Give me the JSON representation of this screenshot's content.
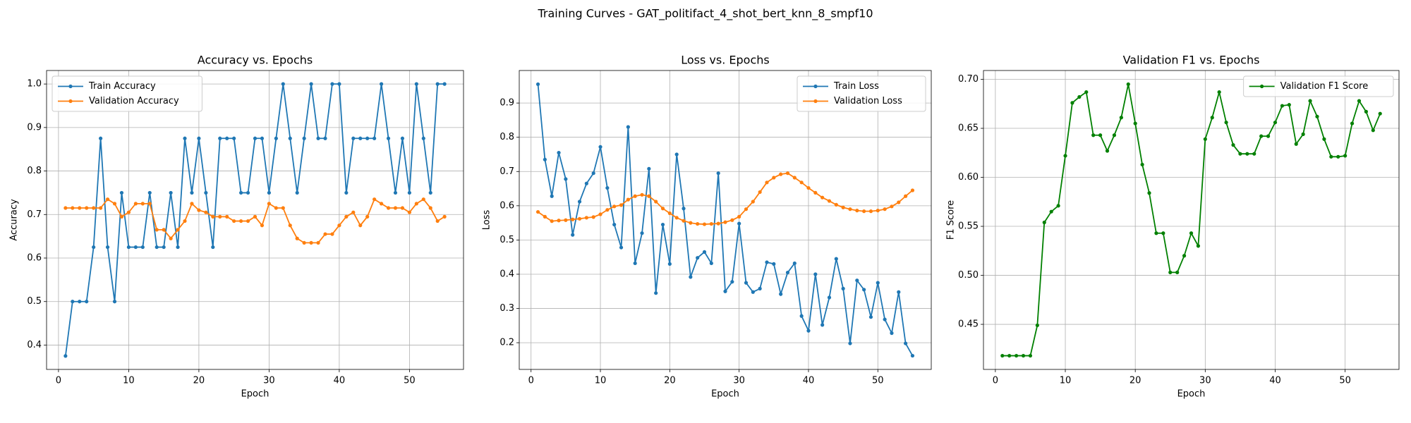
{
  "title": "Training Curves - GAT_politifact_4_shot_bert_knn_8_smpf10",
  "chart_data": [
    {
      "type": "line",
      "title": "Accuracy vs. Epochs",
      "xlabel": "Epoch",
      "ylabel": "Accuracy",
      "x": [
        1,
        2,
        3,
        4,
        5,
        6,
        7,
        8,
        9,
        10,
        11,
        12,
        13,
        14,
        15,
        16,
        17,
        18,
        19,
        20,
        21,
        22,
        23,
        24,
        25,
        26,
        27,
        28,
        29,
        30,
        31,
        32,
        33,
        34,
        35,
        36,
        37,
        38,
        39,
        40,
        41,
        42,
        43,
        44,
        45,
        46,
        47,
        48,
        49,
        50,
        51,
        52,
        53,
        54,
        55
      ],
      "series": [
        {
          "name": "Train Accuracy",
          "color": "#1f77b4",
          "values": [
            0.375,
            0.5,
            0.5,
            0.5,
            0.625,
            0.875,
            0.625,
            0.5,
            0.75,
            0.625,
            0.625,
            0.625,
            0.75,
            0.625,
            0.625,
            0.75,
            0.625,
            0.875,
            0.75,
            0.875,
            0.75,
            0.625,
            0.875,
            0.875,
            0.875,
            0.75,
            0.75,
            0.875,
            0.875,
            0.75,
            0.875,
            1.0,
            0.875,
            0.75,
            0.875,
            1.0,
            0.875,
            0.875,
            1.0,
            1.0,
            0.75,
            0.875,
            0.875,
            0.875,
            0.875,
            1.0,
            0.875,
            0.75,
            0.875,
            0.75,
            1.0,
            0.875,
            0.75,
            1.0,
            1.0
          ]
        },
        {
          "name": "Validation Accuracy",
          "color": "#ff7f0e",
          "values": [
            0.715,
            0.715,
            0.715,
            0.715,
            0.715,
            0.715,
            0.735,
            0.725,
            0.695,
            0.705,
            0.725,
            0.725,
            0.725,
            0.665,
            0.665,
            0.645,
            0.665,
            0.685,
            0.725,
            0.71,
            0.705,
            0.695,
            0.695,
            0.695,
            0.685,
            0.685,
            0.685,
            0.695,
            0.675,
            0.725,
            0.715,
            0.715,
            0.675,
            0.645,
            0.635,
            0.635,
            0.635,
            0.655,
            0.655,
            0.675,
            0.695,
            0.705,
            0.675,
            0.695,
            0.735,
            0.725,
            0.715,
            0.715,
            0.715,
            0.705,
            0.725,
            0.735,
            0.715,
            0.685,
            0.695
          ]
        }
      ],
      "xlim": [
        -1.7,
        57.7
      ],
      "xticks": [
        0,
        10,
        20,
        30,
        40,
        50
      ],
      "ylim": [
        0.344,
        1.031
      ],
      "yticks": [
        0.4,
        0.5,
        0.6,
        0.7,
        0.8,
        0.9,
        {
          "value": 1.0,
          "label": "1.0"
        }
      ],
      "grid": true,
      "legend": "upper-left"
    },
    {
      "type": "line",
      "title": "Loss vs. Epochs",
      "xlabel": "Epoch",
      "ylabel": "Loss",
      "x": [
        1,
        2,
        3,
        4,
        5,
        6,
        7,
        8,
        9,
        10,
        11,
        12,
        13,
        14,
        15,
        16,
        17,
        18,
        19,
        20,
        21,
        22,
        23,
        24,
        25,
        26,
        27,
        28,
        29,
        30,
        31,
        32,
        33,
        34,
        35,
        36,
        37,
        38,
        39,
        40,
        41,
        42,
        43,
        44,
        45,
        46,
        47,
        48,
        49,
        50,
        51,
        52,
        53,
        54,
        55
      ],
      "series": [
        {
          "name": "Train Loss",
          "color": "#1f77b4",
          "values": [
            0.955,
            0.735,
            0.628,
            0.755,
            0.678,
            0.515,
            0.612,
            0.665,
            0.695,
            0.772,
            0.652,
            0.545,
            0.478,
            0.83,
            0.432,
            0.52,
            0.708,
            0.345,
            0.545,
            0.43,
            0.75,
            0.592,
            0.392,
            0.448,
            0.465,
            0.432,
            0.695,
            0.35,
            0.378,
            0.548,
            0.375,
            0.348,
            0.358,
            0.435,
            0.43,
            0.342,
            0.405,
            0.432,
            0.278,
            0.235,
            0.4,
            0.252,
            0.332,
            0.445,
            0.358,
            0.198,
            0.382,
            0.355,
            0.275,
            0.375,
            0.268,
            0.228,
            0.348,
            0.198,
            0.162
          ]
        },
        {
          "name": "Validation Loss",
          "color": "#ff7f0e",
          "values": [
            0.582,
            0.568,
            0.555,
            0.557,
            0.558,
            0.56,
            0.562,
            0.565,
            0.567,
            0.575,
            0.588,
            0.598,
            0.602,
            0.618,
            0.628,
            0.632,
            0.628,
            0.612,
            0.592,
            0.578,
            0.565,
            0.556,
            0.55,
            0.547,
            0.546,
            0.547,
            0.548,
            0.552,
            0.558,
            0.568,
            0.59,
            0.612,
            0.64,
            0.668,
            0.682,
            0.692,
            0.695,
            0.682,
            0.668,
            0.652,
            0.638,
            0.624,
            0.614,
            0.603,
            0.595,
            0.59,
            0.586,
            0.584,
            0.584,
            0.586,
            0.59,
            0.598,
            0.61,
            0.628,
            0.645
          ]
        }
      ],
      "xlim": [
        -1.7,
        57.7
      ],
      "xticks": [
        0,
        10,
        20,
        30,
        40,
        50
      ],
      "ylim": [
        0.122,
        0.995
      ],
      "yticks": [
        0.2,
        0.3,
        0.4,
        0.5,
        0.6,
        0.7,
        0.8,
        0.9
      ],
      "grid": true,
      "legend": "upper-right"
    },
    {
      "type": "line",
      "title": "Validation F1 vs. Epochs",
      "xlabel": "Epoch",
      "ylabel": "F1 Score",
      "x": [
        1,
        2,
        3,
        4,
        5,
        6,
        7,
        8,
        9,
        10,
        11,
        12,
        13,
        14,
        15,
        16,
        17,
        18,
        19,
        20,
        21,
        22,
        23,
        24,
        25,
        26,
        27,
        28,
        29,
        30,
        31,
        32,
        33,
        34,
        35,
        36,
        37,
        38,
        39,
        40,
        41,
        42,
        43,
        44,
        45,
        46,
        47,
        48,
        49,
        50,
        51,
        52,
        53,
        54,
        55
      ],
      "series": [
        {
          "name": "Validation F1 Score",
          "color": "#008000",
          "values": [
            0.418,
            0.418,
            0.418,
            0.418,
            0.418,
            0.449,
            0.554,
            0.565,
            0.571,
            0.622,
            0.676,
            0.682,
            0.687,
            0.643,
            0.643,
            0.627,
            0.643,
            0.661,
            0.695,
            0.655,
            0.613,
            0.584,
            0.543,
            0.543,
            0.503,
            0.503,
            0.52,
            0.543,
            0.53,
            0.639,
            0.661,
            0.687,
            0.656,
            0.633,
            0.624,
            0.624,
            0.624,
            0.642,
            0.642,
            0.656,
            0.673,
            0.674,
            0.634,
            0.644,
            0.678,
            0.662,
            0.639,
            0.621,
            0.621,
            0.622,
            0.655,
            0.678,
            0.667,
            0.648,
            0.665
          ]
        }
      ],
      "xlim": [
        -1.7,
        57.7
      ],
      "xticks": [
        0,
        10,
        20,
        30,
        40,
        50
      ],
      "ylim": [
        0.404,
        0.709
      ],
      "yticks": [
        0.45,
        {
          "value": 0.5,
          "label": "0.50"
        },
        0.55,
        {
          "value": 0.6,
          "label": "0.60"
        },
        0.65,
        {
          "value": 0.7,
          "label": "0.70"
        }
      ],
      "grid": true,
      "legend": "upper-right"
    }
  ]
}
